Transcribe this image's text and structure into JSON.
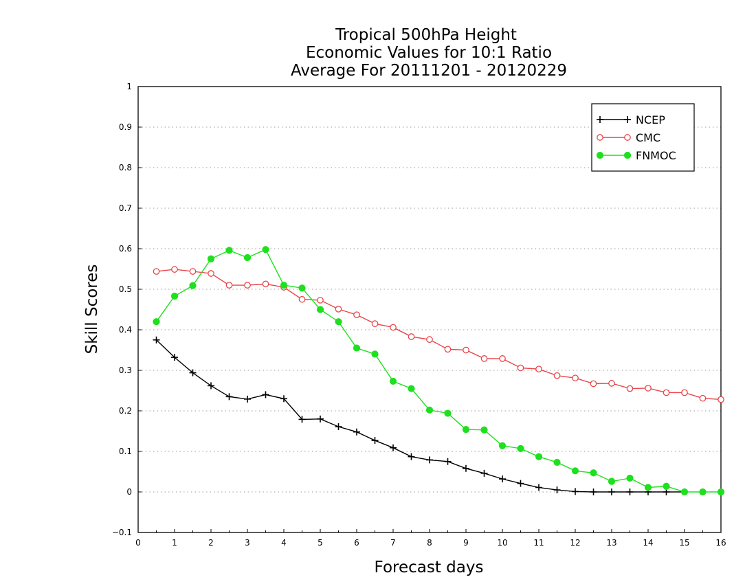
{
  "chart_data": {
    "type": "line",
    "title_lines": [
      "Tropical 500hPa Height",
      "Economic Values for 10:1 Ratio",
      "Average For 20111201 - 20120229"
    ],
    "xlabel": "Forecast days",
    "ylabel": "Skill Scores",
    "xlim": [
      0,
      16
    ],
    "ylim": [
      -0.1,
      1
    ],
    "x_ticks": [
      0,
      1,
      2,
      3,
      4,
      5,
      6,
      7,
      8,
      9,
      10,
      11,
      12,
      13,
      14,
      15,
      16
    ],
    "x_tick_labels": [
      "0",
      "1",
      "2",
      "3",
      "4",
      "5",
      "6",
      "7",
      "8",
      "9",
      "10",
      "11",
      "12",
      "13",
      "14",
      "15",
      "16"
    ],
    "y_ticks": [
      -0.1,
      0,
      0.1,
      0.2,
      0.3,
      0.4,
      0.5,
      0.6,
      0.7,
      0.8,
      0.9,
      1
    ],
    "y_tick_labels": [
      "−0.1",
      "0",
      "0.1",
      "0.2",
      "0.3",
      "0.4",
      "0.5",
      "0.6",
      "0.7",
      "0.8",
      "0.9",
      "1"
    ],
    "grid": "horizontal dotted",
    "legend_position": "top-right",
    "x": [
      0.5,
      1,
      1.5,
      2,
      2.5,
      3,
      3.5,
      4,
      4.5,
      5,
      5.5,
      6,
      6.5,
      7,
      7.5,
      8,
      8.5,
      9,
      9.5,
      10,
      10.5,
      11,
      11.5,
      12,
      12.5,
      13,
      13.5,
      14,
      14.5,
      15,
      15.5,
      16
    ],
    "series": [
      {
        "name": "NCEP",
        "color": "#000000",
        "marker": "plus",
        "values": [
          0.375,
          0.332,
          0.294,
          0.262,
          0.235,
          0.229,
          0.24,
          0.23,
          0.179,
          0.18,
          0.161,
          0.148,
          0.127,
          0.109,
          0.087,
          0.079,
          0.075,
          0.058,
          0.046,
          0.032,
          0.021,
          0.011,
          0.005,
          0.001,
          0.0,
          0.0,
          0.0,
          0.0,
          0.0,
          0.0,
          null,
          null
        ]
      },
      {
        "name": "CMC",
        "color": "#e8454a",
        "marker": "open-circle",
        "values": [
          0.544,
          0.549,
          0.544,
          0.539,
          0.51,
          0.51,
          0.513,
          0.505,
          0.475,
          0.473,
          0.451,
          0.437,
          0.415,
          0.406,
          0.383,
          0.376,
          0.352,
          0.35,
          0.329,
          0.329,
          0.306,
          0.303,
          0.287,
          0.281,
          0.267,
          0.268,
          0.255,
          0.256,
          0.245,
          0.245,
          0.231,
          0.228
        ]
      },
      {
        "name": "FNMOC",
        "color": "#1ee01e",
        "marker": "filled-circle",
        "values": [
          0.42,
          0.483,
          0.509,
          0.575,
          0.596,
          0.578,
          0.598,
          0.51,
          0.503,
          0.45,
          0.42,
          0.355,
          0.34,
          0.273,
          0.255,
          0.202,
          0.194,
          0.154,
          0.153,
          0.114,
          0.107,
          0.087,
          0.073,
          0.052,
          0.047,
          0.026,
          0.034,
          0.011,
          0.014,
          0.0,
          0.0,
          0.0
        ]
      }
    ]
  }
}
